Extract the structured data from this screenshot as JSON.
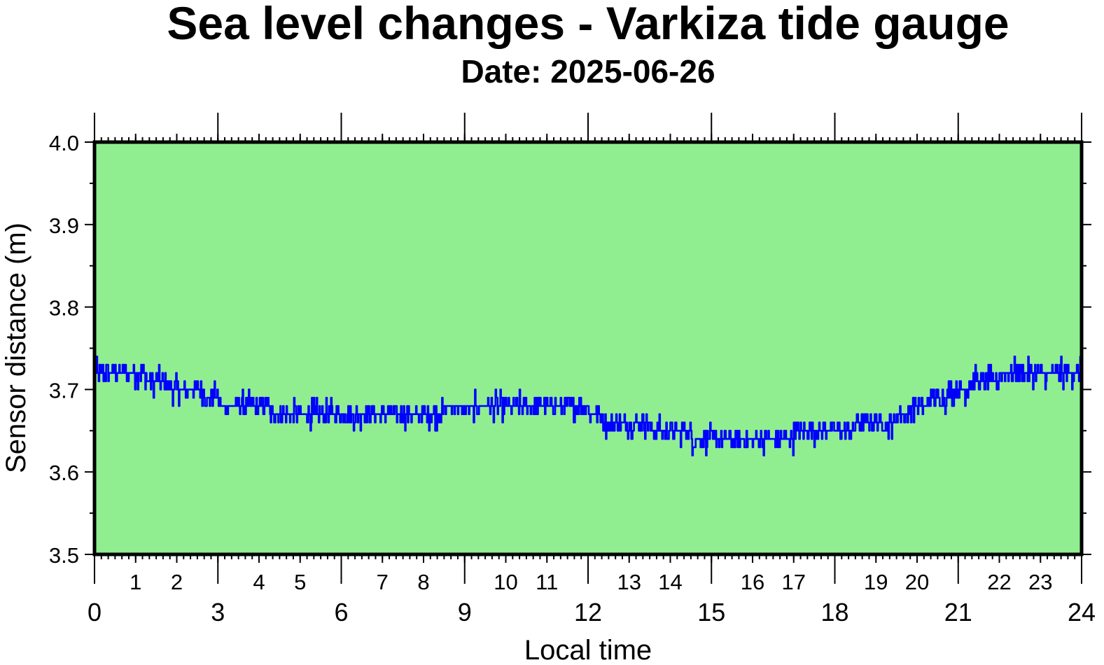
{
  "chart_data": {
    "type": "line",
    "title": "Sea level changes - Varkiza tide gauge",
    "subtitle": "Date: 2025-06-26",
    "xlabel": "Local time",
    "ylabel": "Sensor distance (m)",
    "xlim": [
      0,
      24
    ],
    "ylim": [
      3.5,
      4.0
    ],
    "x_major_ticks": [
      "0",
      "3",
      "6",
      "9",
      "12",
      "15",
      "18",
      "21",
      "24"
    ],
    "x_minor_ticks": [
      "1",
      "2",
      "4",
      "5",
      "7",
      "8",
      "10",
      "11",
      "13",
      "14",
      "16",
      "17",
      "19",
      "20",
      "22",
      "23"
    ],
    "y_ticks": [
      "3.5",
      "3.6",
      "3.7",
      "3.8",
      "3.9",
      "4.0"
    ],
    "grid": false,
    "colors": {
      "plot_background": "#90ee90",
      "line": "#0000ff",
      "frame": "#000000"
    },
    "series": [
      {
        "x": [
          0,
          0.5,
          1,
          1.5,
          2,
          2.5,
          3,
          3.5,
          4,
          4.5,
          5,
          5.5,
          6,
          6.5,
          7,
          7.5,
          8,
          8.5,
          9,
          9.5,
          10,
          10.5,
          11,
          11.5,
          12,
          12.5,
          13,
          13.5,
          14,
          14.5,
          15,
          15.5,
          16,
          16.5,
          17,
          17.5,
          18,
          18.5,
          19,
          19.5,
          20,
          20.5,
          21,
          21.5,
          22,
          22.5,
          23,
          23.5,
          24
        ],
        "values": [
          3.72,
          3.72,
          3.72,
          3.71,
          3.7,
          3.7,
          3.685,
          3.68,
          3.68,
          3.67,
          3.67,
          3.67,
          3.67,
          3.67,
          3.665,
          3.665,
          3.67,
          3.675,
          3.675,
          3.675,
          3.678,
          3.68,
          3.68,
          3.678,
          3.675,
          3.66,
          3.66,
          3.655,
          3.645,
          3.645,
          3.64,
          3.64,
          3.64,
          3.64,
          3.645,
          3.645,
          3.65,
          3.655,
          3.66,
          3.665,
          3.68,
          3.69,
          3.7,
          3.71,
          3.715,
          3.72,
          3.72,
          3.72,
          3.715
        ]
      }
    ]
  }
}
